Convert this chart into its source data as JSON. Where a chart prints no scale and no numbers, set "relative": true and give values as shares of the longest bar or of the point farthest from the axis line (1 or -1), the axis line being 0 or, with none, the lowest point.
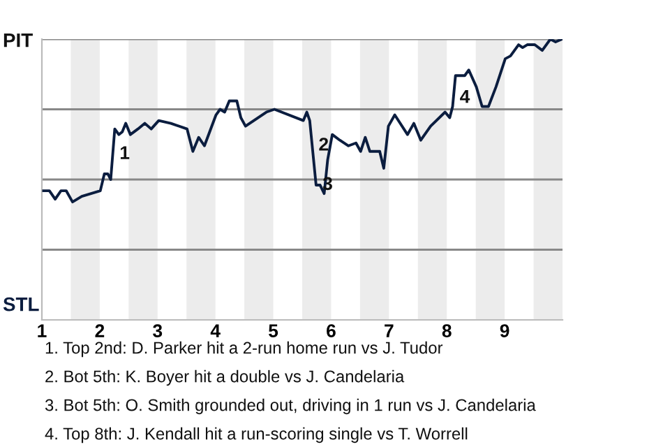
{
  "chart_data": {
    "type": "line",
    "relative": true,
    "x": [
      1.03,
      1.13,
      1.23,
      1.33,
      1.42,
      1.53,
      1.69,
      2.01,
      2.08,
      2.14,
      2.19,
      2.26,
      2.33,
      2.39,
      2.45,
      2.53,
      2.66,
      2.78,
      2.89,
      3.02,
      3.23,
      3.51,
      3.61,
      3.71,
      3.81,
      4.01,
      4.08,
      4.16,
      4.24,
      4.37,
      4.44,
      4.52,
      4.88,
      5.02,
      5.52,
      5.58,
      5.63,
      5.74,
      5.81,
      5.88,
      5.94,
      6.02,
      6.15,
      6.3,
      6.43,
      6.51,
      6.59,
      6.67,
      6.84,
      6.91,
      6.99,
      7.1,
      7.32,
      7.43,
      7.55,
      7.72,
      7.97,
      8.05,
      8.1,
      8.15,
      8.31,
      8.38,
      8.51,
      8.61,
      8.72,
      8.85,
      9.01,
      9.1,
      9.24,
      9.31,
      9.39,
      9.52,
      9.65,
      9.79,
      9.88,
      9.99
    ],
    "series": [
      {
        "color": "#0b1d3f",
        "values": [
          0.46,
          0.46,
          0.43,
          0.46,
          0.46,
          0.42,
          0.44,
          0.46,
          0.52,
          0.52,
          0.5,
          0.68,
          0.66,
          0.67,
          0.7,
          0.66,
          0.68,
          0.7,
          0.68,
          0.71,
          0.7,
          0.68,
          0.6,
          0.65,
          0.62,
          0.73,
          0.75,
          0.74,
          0.78,
          0.78,
          0.72,
          0.69,
          0.74,
          0.75,
          0.71,
          0.74,
          0.71,
          0.48,
          0.48,
          0.45,
          0.57,
          0.66,
          0.64,
          0.62,
          0.63,
          0.6,
          0.65,
          0.6,
          0.6,
          0.54,
          0.69,
          0.73,
          0.66,
          0.7,
          0.64,
          0.69,
          0.74,
          0.72,
          0.76,
          0.87,
          0.87,
          0.89,
          0.83,
          0.76,
          0.76,
          0.83,
          0.93,
          0.94,
          0.98,
          0.97,
          0.98,
          0.98,
          0.96,
          1.0,
          0.99,
          1.0
        ]
      }
    ],
    "xlim": [
      1,
      10
    ],
    "xticks": [
      1,
      2,
      3,
      4,
      5,
      6,
      7,
      8,
      9
    ],
    "ref_lines": [
      {
        "axis": "y",
        "value": 0.25,
        "color": "#888888"
      },
      {
        "axis": "y",
        "value": 0.5,
        "color": "#888888"
      },
      {
        "axis": "y",
        "value": 0.75,
        "color": "#888888"
      },
      {
        "axis": "y",
        "value": 1,
        "color": "#888888"
      }
    ],
    "bands": [
      {
        "axis": "x",
        "from": 1.5,
        "to": 2,
        "color": "#ececec"
      },
      {
        "axis": "x",
        "from": 2.5,
        "to": 3,
        "color": "#ececec"
      },
      {
        "axis": "x",
        "from": 3.5,
        "to": 4,
        "color": "#ececec"
      },
      {
        "axis": "x",
        "from": 4.5,
        "to": 5,
        "color": "#ececec"
      },
      {
        "axis": "x",
        "from": 5.5,
        "to": 6,
        "color": "#ececec"
      },
      {
        "axis": "x",
        "from": 6.5,
        "to": 7,
        "color": "#ececec"
      },
      {
        "axis": "x",
        "from": 7.5,
        "to": 8,
        "color": "#ececec"
      },
      {
        "axis": "x",
        "from": 8.5,
        "to": 9,
        "color": "#ececec"
      },
      {
        "axis": "x",
        "from": 9.5,
        "to": 10,
        "color": "#ececec"
      }
    ],
    "annotations": [
      "PIT",
      "STL",
      {
        "text": "1",
        "x": 2.23,
        "y": 0.59
      },
      {
        "text": "2",
        "x": 5.67,
        "y": 0.62
      },
      {
        "text": "3",
        "x": 5.74,
        "y": 0.48
      },
      {
        "text": "4",
        "x": 8.11,
        "y": 0.79
      },
      "1. Top 2nd: D. Parker hit a 2-run home run vs J. Tudor",
      "2. Bot 5th: K. Boyer hit a double vs J. Candelaria",
      "3. Bot 5th: O. Smith grounded out, driving in 1 run vs J. Candelaria",
      "4. Top 8th: J. Kendall hit a run-scoring single vs T. Worrell"
    ]
  }
}
